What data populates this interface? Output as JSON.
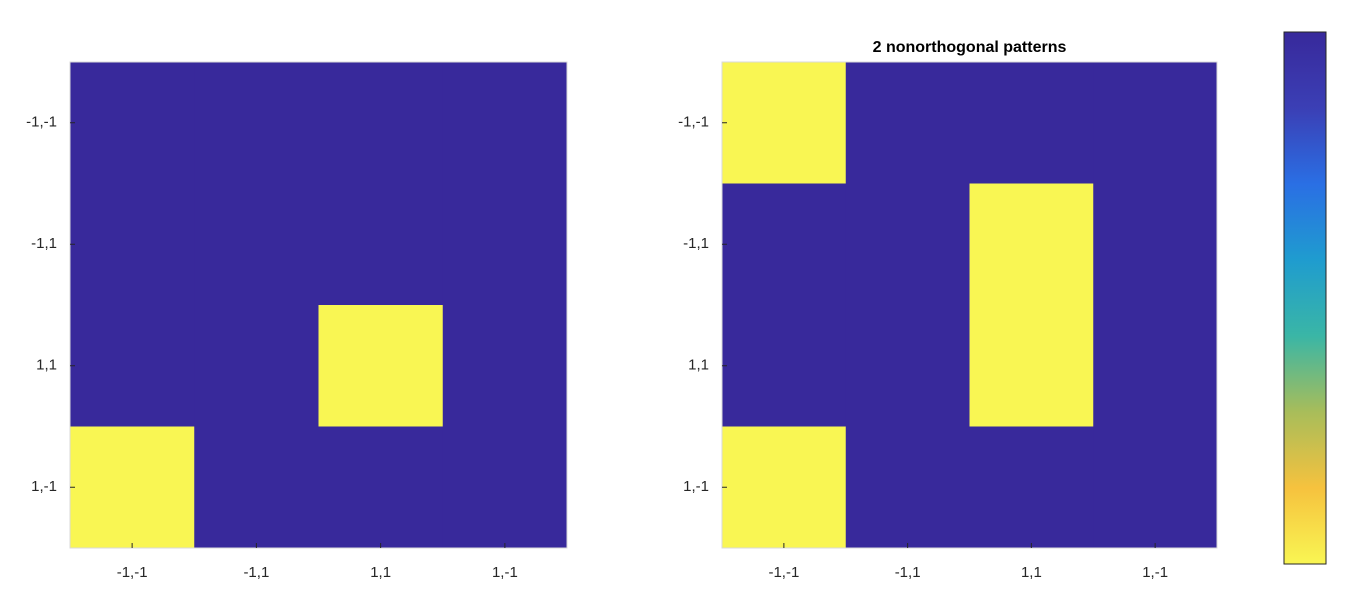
{
  "chart_data": [
    {
      "type": "heatmap",
      "x": [
        "-1,-1",
        "-1,1",
        "1,1",
        "1,-1"
      ],
      "y": [
        "-1,-1",
        "-1,1",
        "1,1",
        "1,-1"
      ],
      "values": [
        [
          1,
          1,
          1,
          1
        ],
        [
          1,
          1,
          1,
          1
        ],
        [
          1,
          1,
          0,
          1
        ],
        [
          0,
          1,
          1,
          1
        ]
      ],
      "clim": [
        0,
        1
      ],
      "colormap": [
        "#f9f653",
        "#f6c23e",
        "#a8bd5a",
        "#3ab6a6",
        "#1f9ccf",
        "#2a6fe4",
        "#3b3fb5",
        "#38299b"
      ]
    },
    {
      "type": "heatmap",
      "title": "2 nonorthogonal patterns",
      "x": [
        "-1,-1",
        "-1,1",
        "1,1",
        "1,-1"
      ],
      "y": [
        "-1,-1",
        "-1,1",
        "1,1",
        "1,-1"
      ],
      "values": [
        [
          0,
          1,
          1,
          1
        ],
        [
          1,
          1,
          0,
          1
        ],
        [
          1,
          1,
          0,
          1
        ],
        [
          0,
          1,
          1,
          1
        ]
      ],
      "clim": [
        0,
        1
      ],
      "colormap": [
        "#f9f653",
        "#f6c23e",
        "#a8bd5a",
        "#3ab6a6",
        "#1f9ccf",
        "#2a6fe4",
        "#3b3fb5",
        "#38299b"
      ],
      "colorbar": true
    }
  ]
}
